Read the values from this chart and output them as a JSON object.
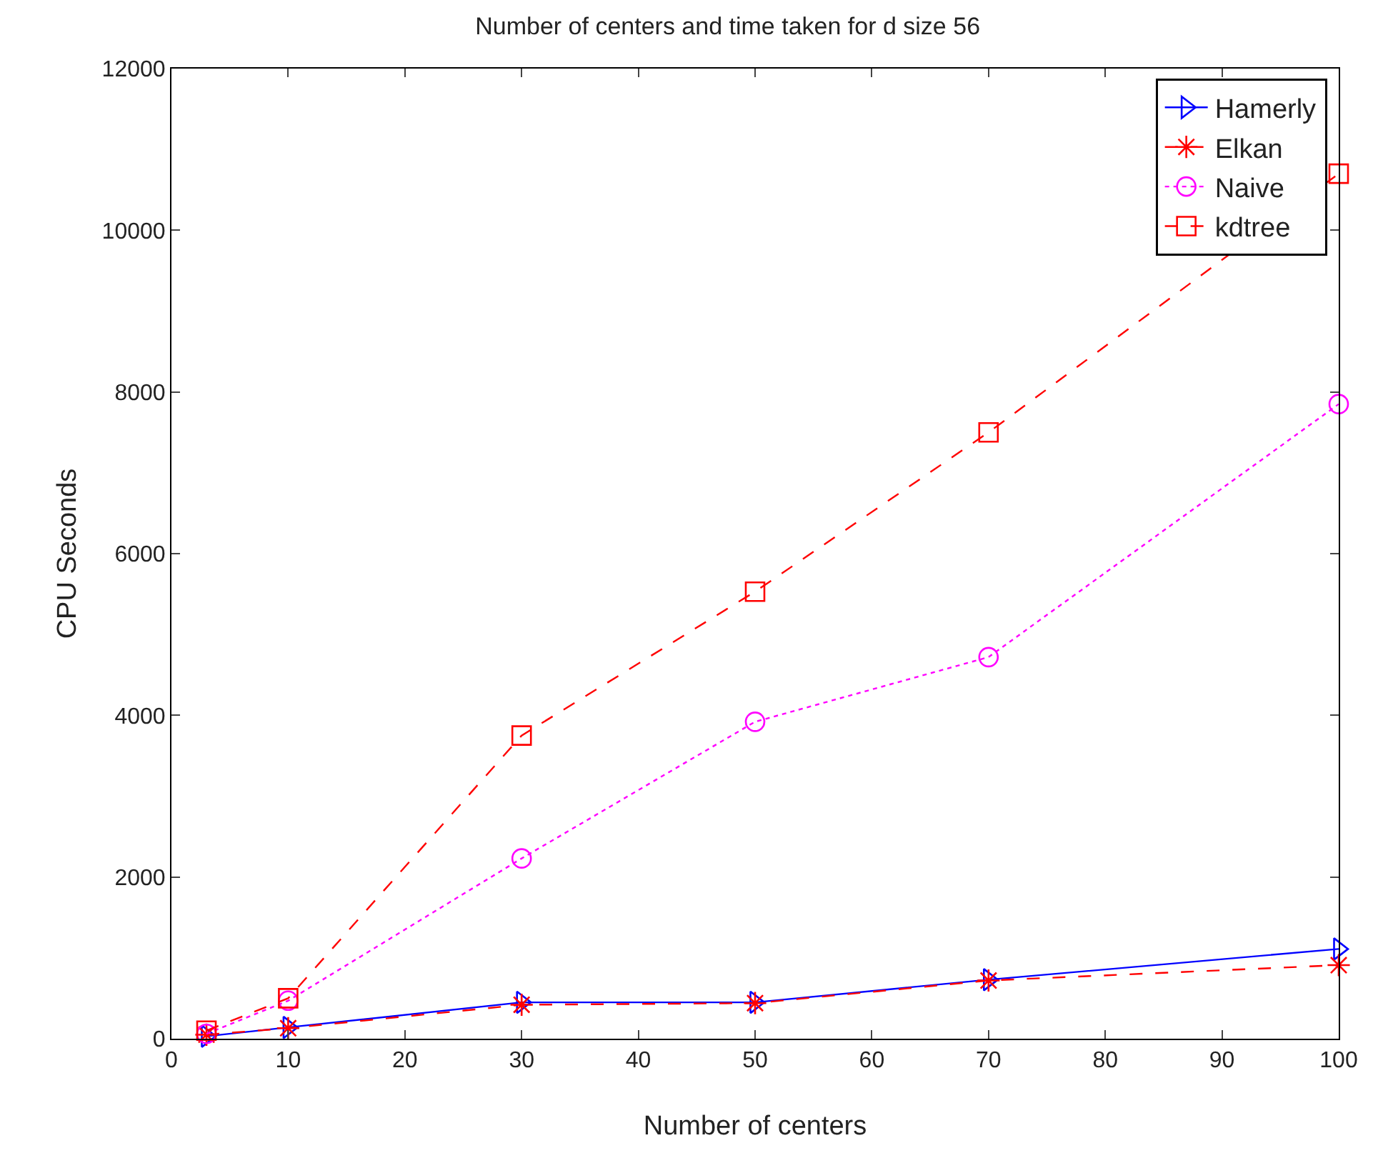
{
  "chart_data": {
    "type": "line",
    "title": "Number of centers and time taken for d size 56",
    "xlabel": "Number of centers",
    "ylabel": "CPU Seconds",
    "x": [
      3,
      10,
      30,
      50,
      70,
      100
    ],
    "series": [
      {
        "name": "Hamerly",
        "color": "#0000ff",
        "marker": "triangle",
        "line_style": "solid",
        "values": [
          30,
          140,
          450,
          450,
          730,
          1110
        ]
      },
      {
        "name": "Elkan",
        "color": "#ff0000",
        "marker": "cross",
        "line_style": "dashed",
        "values": [
          50,
          130,
          420,
          440,
          720,
          910
        ]
      },
      {
        "name": "Naive",
        "color": "#ff00ff",
        "marker": "circle",
        "line_style": "dotted",
        "values": [
          60,
          470,
          2230,
          3920,
          4720,
          7850
        ]
      },
      {
        "name": "kdtree",
        "color": "#ff0000",
        "marker": "square",
        "line_style": "dashed",
        "values": [
          100,
          500,
          3750,
          5530,
          7500,
          10700
        ]
      }
    ],
    "xlim": [
      0,
      100
    ],
    "xticks": [
      0,
      10,
      20,
      30,
      40,
      50,
      60,
      70,
      80,
      90,
      100
    ],
    "ylim": [
      0,
      12000
    ],
    "yticks": [
      0,
      2000,
      4000,
      6000,
      8000,
      10000,
      12000
    ],
    "grid": false,
    "legend": "top right"
  }
}
